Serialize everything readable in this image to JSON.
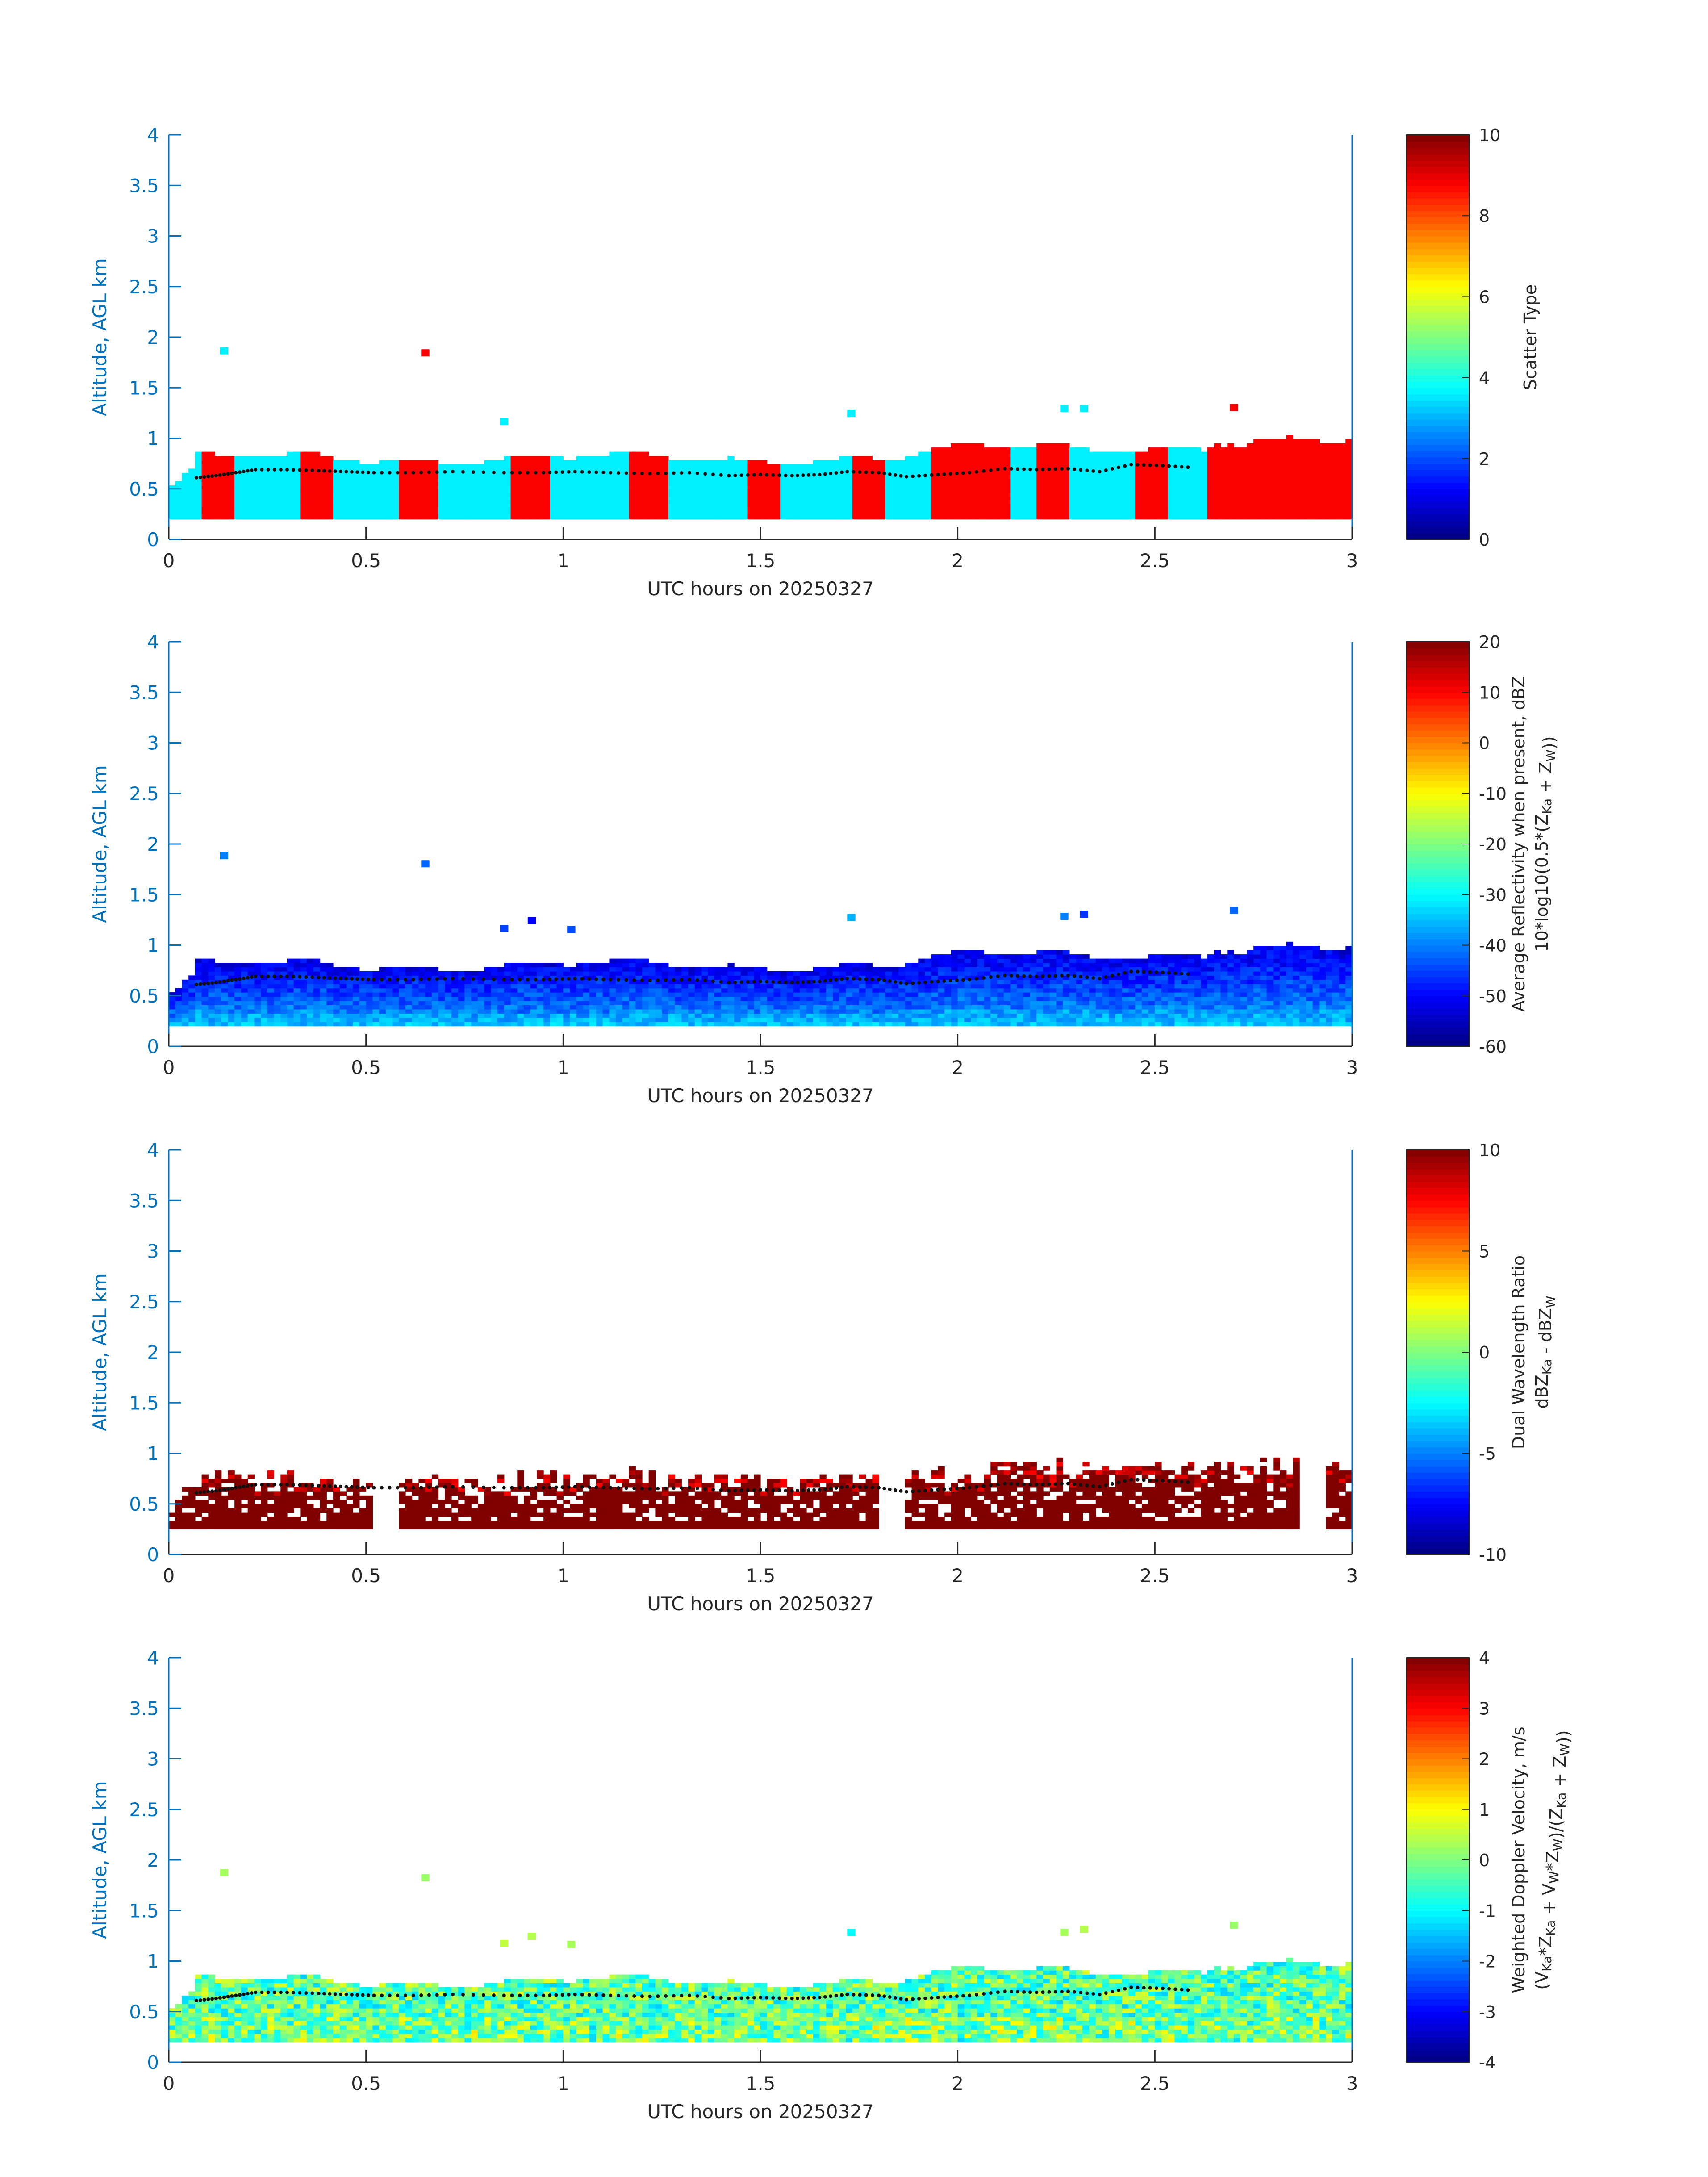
{
  "figure": {
    "date": "20250327",
    "axis_color": "#0072bd",
    "text_color": "#262626"
  },
  "chart_data": [
    {
      "type": "heatmap",
      "title": "",
      "xlabel": "UTC hours on 20250327",
      "ylabel": "Altitude, AGL km",
      "xlim": [
        0,
        3
      ],
      "ylim": [
        0,
        4
      ],
      "xticks": [
        "0",
        "0.5",
        "1",
        "1.5",
        "2",
        "2.5",
        "3"
      ],
      "yticks": [
        "0",
        "0.5",
        "1",
        "1.5",
        "2",
        "2.5",
        "3",
        "3.5",
        "4"
      ],
      "colorbar": {
        "label_lines": [
          "Scatter Type"
        ],
        "clim": [
          0,
          10
        ],
        "ticks": [
          "0",
          "2",
          "4",
          "6",
          "8",
          "10"
        ],
        "colormap": "jet"
      },
      "field": "scatter_type",
      "cloud_layer": {
        "base_km": 0.2,
        "top_km_typical": [
          0.75,
          0.85
        ],
        "top_km_late": [
          0.9,
          1.3
        ]
      },
      "categories": [
        {
          "value": 3.6,
          "color": "#2bf5d6"
        },
        {
          "value": 8.8,
          "color": "#ff4a10"
        }
      ],
      "isolated_cells": [
        {
          "x": 0.13,
          "y": 1.85,
          "value": 3.6
        },
        {
          "x": 0.64,
          "y": 1.83,
          "value": 8.8
        },
        {
          "x": 0.84,
          "y": 1.15,
          "value": 3.6
        },
        {
          "x": 1.72,
          "y": 1.23,
          "value": 3.6
        },
        {
          "x": 2.26,
          "y": 1.28,
          "value": 3.6
        },
        {
          "x": 2.31,
          "y": 1.28,
          "value": 3.6
        },
        {
          "x": 2.69,
          "y": 1.29,
          "value": 8.8
        }
      ]
    },
    {
      "type": "heatmap",
      "title": "",
      "xlabel": "UTC hours on 20250327",
      "ylabel": "Altitude, AGL km",
      "xlim": [
        0,
        3
      ],
      "ylim": [
        0,
        4
      ],
      "xticks": [
        "0",
        "0.5",
        "1",
        "1.5",
        "2",
        "2.5",
        "3"
      ],
      "yticks": [
        "0",
        "0.5",
        "1",
        "1.5",
        "2",
        "2.5",
        "3",
        "3.5",
        "4"
      ],
      "colorbar": {
        "label_lines": [
          "Average Reflectivity when present, dBZ",
          "10*log10(0.5*(Z_Ka + Z_W))"
        ],
        "clim": [
          -60,
          20
        ],
        "ticks": [
          "-60",
          "-50",
          "-40",
          "-30",
          "-20",
          "-10",
          "0",
          "10",
          "20"
        ],
        "colormap": "jet"
      },
      "field": "reflectivity_dbz",
      "typical_range_dbz": [
        -52,
        -30
      ],
      "isolated_cells": [
        {
          "x": 0.13,
          "y": 1.87,
          "value": -40
        },
        {
          "x": 0.64,
          "y": 1.79,
          "value": -42
        },
        {
          "x": 0.84,
          "y": 1.15,
          "value": -45
        },
        {
          "x": 0.91,
          "y": 1.23,
          "value": -50
        },
        {
          "x": 1.01,
          "y": 1.14,
          "value": -44
        },
        {
          "x": 1.72,
          "y": 1.26,
          "value": -36
        },
        {
          "x": 2.26,
          "y": 1.27,
          "value": -40
        },
        {
          "x": 2.31,
          "y": 1.29,
          "value": -46
        },
        {
          "x": 2.69,
          "y": 1.33,
          "value": -42
        }
      ]
    },
    {
      "type": "heatmap",
      "title": "",
      "xlabel": "UTC hours on 20250327",
      "ylabel": "Altitude, AGL km",
      "xlim": [
        0,
        3
      ],
      "ylim": [
        0,
        4
      ],
      "xticks": [
        "0",
        "0.5",
        "1",
        "1.5",
        "2",
        "2.5",
        "3"
      ],
      "yticks": [
        "0",
        "0.5",
        "1",
        "1.5",
        "2",
        "2.5",
        "3",
        "3.5",
        "4"
      ],
      "colorbar": {
        "label_lines": [
          "Dual Wavelength Ratio",
          "dBZ_Ka - dBZ_W"
        ],
        "clim": [
          -10,
          10
        ],
        "ticks": [
          "-10",
          "-5",
          "0",
          "5",
          "10"
        ],
        "colormap": "jet"
      },
      "field": "dual_wavelength_ratio_db",
      "layer_base_km": 0.25,
      "typical_value": 10,
      "gaps_hours": [
        [
          0.51,
          0.58
        ],
        [
          1.8,
          1.86
        ],
        [
          2.86,
          2.92
        ]
      ]
    },
    {
      "type": "heatmap",
      "title": "",
      "xlabel": "UTC hours on 20250327",
      "ylabel": "Altitude, AGL km",
      "xlim": [
        0,
        3
      ],
      "ylim": [
        0,
        4
      ],
      "xticks": [
        "0",
        "0.5",
        "1",
        "1.5",
        "2",
        "2.5",
        "3"
      ],
      "yticks": [
        "0",
        "0.5",
        "1",
        "1.5",
        "2",
        "2.5",
        "3",
        "3.5",
        "4"
      ],
      "colorbar": {
        "label_lines": [
          "Weighted Doppler Velocity, m/s",
          "(V_Ka*Z_Ka + V_W*Z_W)/(Z_Ka + Z_W))"
        ],
        "clim": [
          -4,
          4
        ],
        "ticks": [
          "-4",
          "-3",
          "-2",
          "-1",
          "0",
          "1",
          "2",
          "3",
          "4"
        ],
        "colormap": "jet"
      },
      "field": "weighted_doppler_velocity_ms",
      "typical_range_ms": [
        -1.2,
        1.5
      ],
      "isolated_cells": [
        {
          "x": 0.13,
          "y": 1.86,
          "value": 0.3
        },
        {
          "x": 0.64,
          "y": 1.81,
          "value": 0.2
        },
        {
          "x": 0.84,
          "y": 1.16,
          "value": 0.5
        },
        {
          "x": 0.91,
          "y": 1.23,
          "value": 0.4
        },
        {
          "x": 1.01,
          "y": 1.15,
          "value": 0.3
        },
        {
          "x": 1.72,
          "y": 1.27,
          "value": -1.0
        },
        {
          "x": 2.26,
          "y": 1.27,
          "value": 0.3
        },
        {
          "x": 2.31,
          "y": 1.3,
          "value": 0.4
        },
        {
          "x": 2.69,
          "y": 1.34,
          "value": 0.2
        }
      ]
    }
  ],
  "cloud_top_trace": {
    "marker_color": "#111111",
    "points": [
      [
        0.07,
        0.61
      ],
      [
        0.12,
        0.63
      ],
      [
        0.17,
        0.66
      ],
      [
        0.22,
        0.69
      ],
      [
        0.3,
        0.69
      ],
      [
        0.38,
        0.68
      ],
      [
        0.45,
        0.67
      ],
      [
        0.52,
        0.66
      ],
      [
        0.62,
        0.66
      ],
      [
        0.72,
        0.67
      ],
      [
        0.85,
        0.66
      ],
      [
        0.95,
        0.66
      ],
      [
        1.03,
        0.67
      ],
      [
        1.12,
        0.66
      ],
      [
        1.22,
        0.65
      ],
      [
        1.32,
        0.66
      ],
      [
        1.42,
        0.63
      ],
      [
        1.5,
        0.64
      ],
      [
        1.58,
        0.63
      ],
      [
        1.65,
        0.64
      ],
      [
        1.72,
        0.67
      ],
      [
        1.8,
        0.66
      ],
      [
        1.87,
        0.62
      ],
      [
        1.95,
        0.64
      ],
      [
        2.03,
        0.66
      ],
      [
        2.12,
        0.7
      ],
      [
        2.2,
        0.69
      ],
      [
        2.28,
        0.7
      ],
      [
        2.36,
        0.67
      ],
      [
        2.44,
        0.74
      ],
      [
        2.52,
        0.73
      ],
      [
        2.6,
        0.71
      ]
    ]
  }
}
